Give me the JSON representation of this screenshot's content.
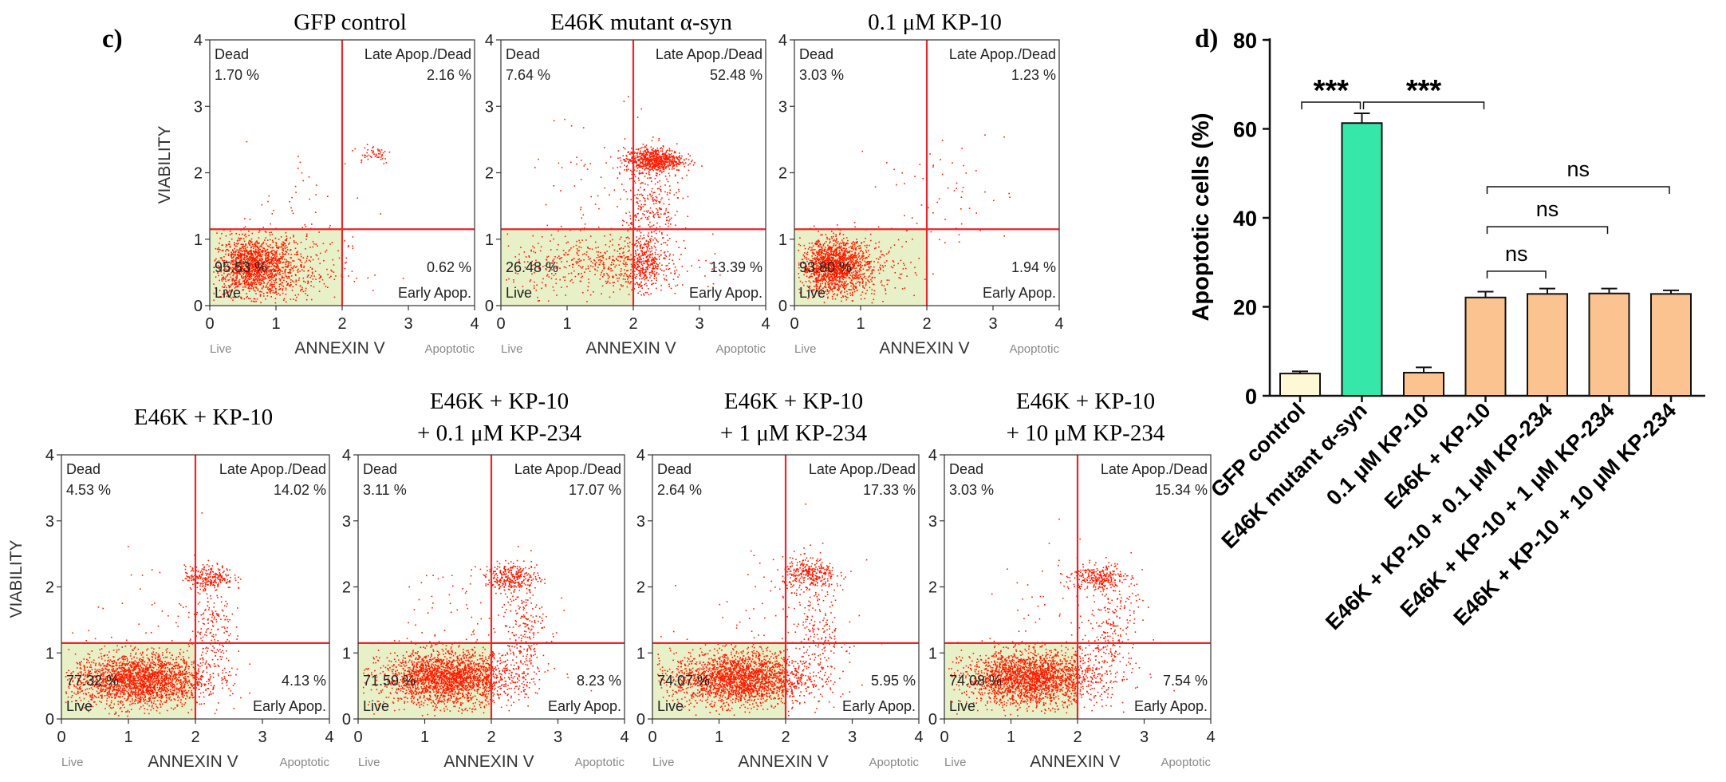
{
  "panel_labels": {
    "c": "c)",
    "d": "d)"
  },
  "colors": {
    "dot": "#ff1a00",
    "quad_line": "#e8262b",
    "live_fill": "#e8f0c8",
    "bar_gfp": "#fff8d4",
    "bar_e46k": "#35e8a9",
    "bar_treat": "#fbc38f"
  },
  "chart_data": [
    {
      "type": "scatter",
      "id": "flow-1",
      "title": "GFP control",
      "title2": "",
      "xlabel": "ANNEXIN V",
      "ylabel": "VIABILITY",
      "xlim": [
        0,
        4
      ],
      "ylim": [
        0,
        4
      ],
      "xticks": [
        "0",
        "1",
        "2",
        "3",
        "4"
      ],
      "yticks": [
        "0",
        "1",
        "2",
        "3",
        "4"
      ],
      "x_threshold": 2.0,
      "y_threshold": 1.15,
      "bottom_left_label": "Live",
      "bottom_right_label": "Apoptotic",
      "quadrants": {
        "dead": {
          "label": "Dead",
          "value": "1.70 %"
        },
        "late": {
          "label": "Late Apop./Dead",
          "value": "2.16 %"
        },
        "live": {
          "label": "Live",
          "value": "95.53 %"
        },
        "early": {
          "label": "Early Apop.",
          "value": "0.62 %"
        }
      },
      "clusters": [
        {
          "cx": 0.65,
          "cy": 0.6,
          "sx": 0.3,
          "sy": 0.22,
          "n": 1400
        },
        {
          "cx": 1.2,
          "cy": 0.55,
          "sx": 0.45,
          "sy": 0.3,
          "n": 300
        },
        {
          "cx": 2.45,
          "cy": 2.3,
          "sx": 0.15,
          "sy": 0.08,
          "n": 50
        },
        {
          "cx": 1.5,
          "cy": 1.5,
          "sx": 0.5,
          "sy": 0.5,
          "n": 40
        }
      ]
    },
    {
      "type": "scatter",
      "id": "flow-2",
      "title": "E46K mutant α-syn",
      "title2": "",
      "xlabel": "ANNEXIN V",
      "ylabel": "",
      "xlim": [
        0,
        4
      ],
      "ylim": [
        0,
        4
      ],
      "xticks": [
        "0",
        "1",
        "2",
        "3",
        "4"
      ],
      "yticks": [
        "0",
        "1",
        "2",
        "3",
        "4"
      ],
      "x_threshold": 2.0,
      "y_threshold": 1.15,
      "bottom_left_label": "Live",
      "bottom_right_label": "Apoptotic",
      "quadrants": {
        "dead": {
          "label": "Dead",
          "value": "7.64 %"
        },
        "late": {
          "label": "Late Apop./Dead",
          "value": "52.48 %"
        },
        "live": {
          "label": "Live",
          "value": "26.48 %"
        },
        "early": {
          "label": "Early Apop.",
          "value": "13.39 %"
        }
      },
      "clusters": [
        {
          "cx": 2.3,
          "cy": 2.2,
          "sx": 0.22,
          "sy": 0.09,
          "n": 700
        },
        {
          "cx": 1.5,
          "cy": 0.6,
          "sx": 0.7,
          "sy": 0.22,
          "n": 500
        },
        {
          "cx": 2.15,
          "cy": 0.65,
          "sx": 0.15,
          "sy": 0.2,
          "n": 300
        },
        {
          "cx": 2.25,
          "cy": 1.45,
          "sx": 0.22,
          "sy": 0.4,
          "n": 300
        },
        {
          "cx": 1.5,
          "cy": 1.6,
          "sx": 0.6,
          "sy": 0.7,
          "n": 80
        }
      ]
    },
    {
      "type": "scatter",
      "id": "flow-3",
      "title": "0.1 μM KP-10",
      "title2": "",
      "xlabel": "ANNEXIN V",
      "ylabel": "",
      "xlim": [
        0,
        4
      ],
      "ylim": [
        0,
        4
      ],
      "xticks": [
        "0",
        "1",
        "2",
        "3",
        "4"
      ],
      "yticks": [
        "0",
        "1",
        "2",
        "3",
        "4"
      ],
      "x_threshold": 2.0,
      "y_threshold": 1.15,
      "bottom_left_label": "Live",
      "bottom_right_label": "Apoptotic",
      "quadrants": {
        "dead": {
          "label": "Dead",
          "value": "3.03 %"
        },
        "late": {
          "label": "Late Apop./Dead",
          "value": "1.23 %"
        },
        "live": {
          "label": "Live",
          "value": "93.80 %"
        },
        "early": {
          "label": "Early Apop.",
          "value": "1.94 %"
        }
      },
      "clusters": [
        {
          "cx": 0.6,
          "cy": 0.6,
          "sx": 0.25,
          "sy": 0.2,
          "n": 1400
        },
        {
          "cx": 1.1,
          "cy": 0.55,
          "sx": 0.4,
          "sy": 0.25,
          "n": 200
        },
        {
          "cx": 2.2,
          "cy": 1.7,
          "sx": 0.5,
          "sy": 0.5,
          "n": 60
        }
      ]
    },
    {
      "type": "scatter",
      "id": "flow-4",
      "title": "E46K + KP-10",
      "title2": "",
      "xlabel": "ANNEXIN V",
      "ylabel": "VIABILITY",
      "xlim": [
        0,
        4
      ],
      "ylim": [
        0,
        4
      ],
      "xticks": [
        "0",
        "1",
        "2",
        "3",
        "4"
      ],
      "yticks": [
        "0",
        "1",
        "2",
        "3",
        "4"
      ],
      "x_threshold": 2.0,
      "y_threshold": 1.15,
      "bottom_left_label": "Live",
      "bottom_right_label": "Apoptotic",
      "quadrants": {
        "dead": {
          "label": "Dead",
          "value": "4.53 %"
        },
        "late": {
          "label": "Late Apop./Dead",
          "value": "14.02 %"
        },
        "live": {
          "label": "Live",
          "value": "77.32 %"
        },
        "early": {
          "label": "Early Apop.",
          "value": "4.13 %"
        }
      },
      "clusters": [
        {
          "cx": 1.15,
          "cy": 0.6,
          "sx": 0.5,
          "sy": 0.2,
          "n": 2200
        },
        {
          "cx": 2.2,
          "cy": 2.15,
          "sx": 0.18,
          "sy": 0.09,
          "n": 250
        },
        {
          "cx": 2.25,
          "cy": 1.3,
          "sx": 0.15,
          "sy": 0.45,
          "n": 200
        },
        {
          "cx": 1.6,
          "cy": 1.5,
          "sx": 0.6,
          "sy": 0.6,
          "n": 60
        }
      ]
    },
    {
      "type": "scatter",
      "id": "flow-5",
      "title": "E46K + KP-10",
      "title2": "+ 0.1 μM KP-234",
      "xlabel": "ANNEXIN V",
      "ylabel": "",
      "xlim": [
        0,
        4
      ],
      "ylim": [
        0,
        4
      ],
      "xticks": [
        "0",
        "1",
        "2",
        "3",
        "4"
      ],
      "yticks": [
        "0",
        "1",
        "2",
        "3",
        "4"
      ],
      "x_threshold": 2.0,
      "y_threshold": 1.15,
      "bottom_left_label": "Live",
      "bottom_right_label": "Apoptotic",
      "quadrants": {
        "dead": {
          "label": "Dead",
          "value": "3.11 %"
        },
        "late": {
          "label": "Late Apop./Dead",
          "value": "17.07 %"
        },
        "live": {
          "label": "Live",
          "value": "71.59 %"
        },
        "early": {
          "label": "Early Apop.",
          "value": "8.23 %"
        }
      },
      "clusters": [
        {
          "cx": 1.35,
          "cy": 0.62,
          "sx": 0.5,
          "sy": 0.2,
          "n": 2200
        },
        {
          "cx": 2.3,
          "cy": 2.15,
          "sx": 0.2,
          "sy": 0.1,
          "n": 300
        },
        {
          "cx": 2.45,
          "cy": 1.3,
          "sx": 0.18,
          "sy": 0.45,
          "n": 250
        },
        {
          "cx": 1.8,
          "cy": 1.5,
          "sx": 0.6,
          "sy": 0.6,
          "n": 70
        }
      ]
    },
    {
      "type": "scatter",
      "id": "flow-6",
      "title": "E46K + KP-10",
      "title2": "+ 1 μM KP-234",
      "xlabel": "ANNEXIN V",
      "ylabel": "",
      "xlim": [
        0,
        4
      ],
      "ylim": [
        0,
        4
      ],
      "xticks": [
        "0",
        "1",
        "2",
        "3",
        "4"
      ],
      "yticks": [
        "0",
        "1",
        "2",
        "3",
        "4"
      ],
      "x_threshold": 2.0,
      "y_threshold": 1.15,
      "bottom_left_label": "Live",
      "bottom_right_label": "Apoptotic",
      "quadrants": {
        "dead": {
          "label": "Dead",
          "value": "2.64 %"
        },
        "late": {
          "label": "Late Apop./Dead",
          "value": "17.33 %"
        },
        "live": {
          "label": "Live",
          "value": "74.07 %"
        },
        "early": {
          "label": "Early Apop.",
          "value": "5.95 %"
        }
      },
      "clusters": [
        {
          "cx": 1.3,
          "cy": 0.62,
          "sx": 0.5,
          "sy": 0.2,
          "n": 2200
        },
        {
          "cx": 2.35,
          "cy": 2.2,
          "sx": 0.2,
          "sy": 0.12,
          "n": 300
        },
        {
          "cx": 2.5,
          "cy": 1.3,
          "sx": 0.2,
          "sy": 0.45,
          "n": 220
        },
        {
          "cx": 1.8,
          "cy": 1.6,
          "sx": 0.6,
          "sy": 0.6,
          "n": 70
        }
      ]
    },
    {
      "type": "scatter",
      "id": "flow-7",
      "title": "E46K + KP-10",
      "title2": "+ 10 μM KP-234",
      "xlabel": "ANNEXIN V",
      "ylabel": "",
      "xlim": [
        0,
        4
      ],
      "ylim": [
        0,
        4
      ],
      "xticks": [
        "0",
        "1",
        "2",
        "3",
        "4"
      ],
      "yticks": [
        "0",
        "1",
        "2",
        "3",
        "4"
      ],
      "x_threshold": 2.0,
      "y_threshold": 1.15,
      "bottom_left_label": "Live",
      "bottom_right_label": "Apoptotic",
      "quadrants": {
        "dead": {
          "label": "Dead",
          "value": "3.03 %"
        },
        "late": {
          "label": "Late Apop./Dead",
          "value": "15.34 %"
        },
        "live": {
          "label": "Live",
          "value": "74.08 %"
        },
        "early": {
          "label": "Early Apop.",
          "value": "7.54 %"
        }
      },
      "clusters": [
        {
          "cx": 1.3,
          "cy": 0.62,
          "sx": 0.5,
          "sy": 0.2,
          "n": 2200
        },
        {
          "cx": 2.3,
          "cy": 2.15,
          "sx": 0.2,
          "sy": 0.1,
          "n": 280
        },
        {
          "cx": 2.5,
          "cy": 1.3,
          "sx": 0.2,
          "sy": 0.45,
          "n": 240
        },
        {
          "cx": 1.8,
          "cy": 1.6,
          "sx": 0.6,
          "sy": 0.6,
          "n": 70
        }
      ]
    },
    {
      "type": "bar",
      "id": "apoptosis-bar",
      "ylabel": "Apoptotic cells (%)",
      "ylim": [
        0,
        80
      ],
      "yticks": [
        0,
        20,
        40,
        60,
        80
      ],
      "categories": [
        "GFP control",
        "E46K mutant α-syn",
        "0.1 μM KP-10",
        "E46K + KP-10",
        "E46K + KP-10 + 0.1 μM KP-234",
        "E46K + KP-10 + 1 μM KP-234",
        "E46K + KP-10 + 10 μM KP-234"
      ],
      "values": [
        5.0,
        61.3,
        5.2,
        22.1,
        22.9,
        23.0,
        22.9
      ],
      "errors": [
        0.5,
        2.2,
        1.2,
        1.3,
        1.2,
        1.1,
        0.8
      ],
      "bar_colors": [
        "#fff8d4",
        "#35e8a9",
        "#fbc38f",
        "#fbc38f",
        "#fbc38f",
        "#fbc38f",
        "#fbc38f"
      ],
      "significance": [
        {
          "from": 0,
          "to": 1,
          "y": 66,
          "label": "***"
        },
        {
          "from": 1,
          "to": 3,
          "y": 66,
          "label": "***"
        },
        {
          "from": 3,
          "to": 4,
          "y": 28,
          "label": "ns"
        },
        {
          "from": 3,
          "to": 5,
          "y": 38,
          "label": "ns"
        },
        {
          "from": 3,
          "to": 6,
          "y": 47,
          "label": "ns"
        }
      ]
    }
  ]
}
